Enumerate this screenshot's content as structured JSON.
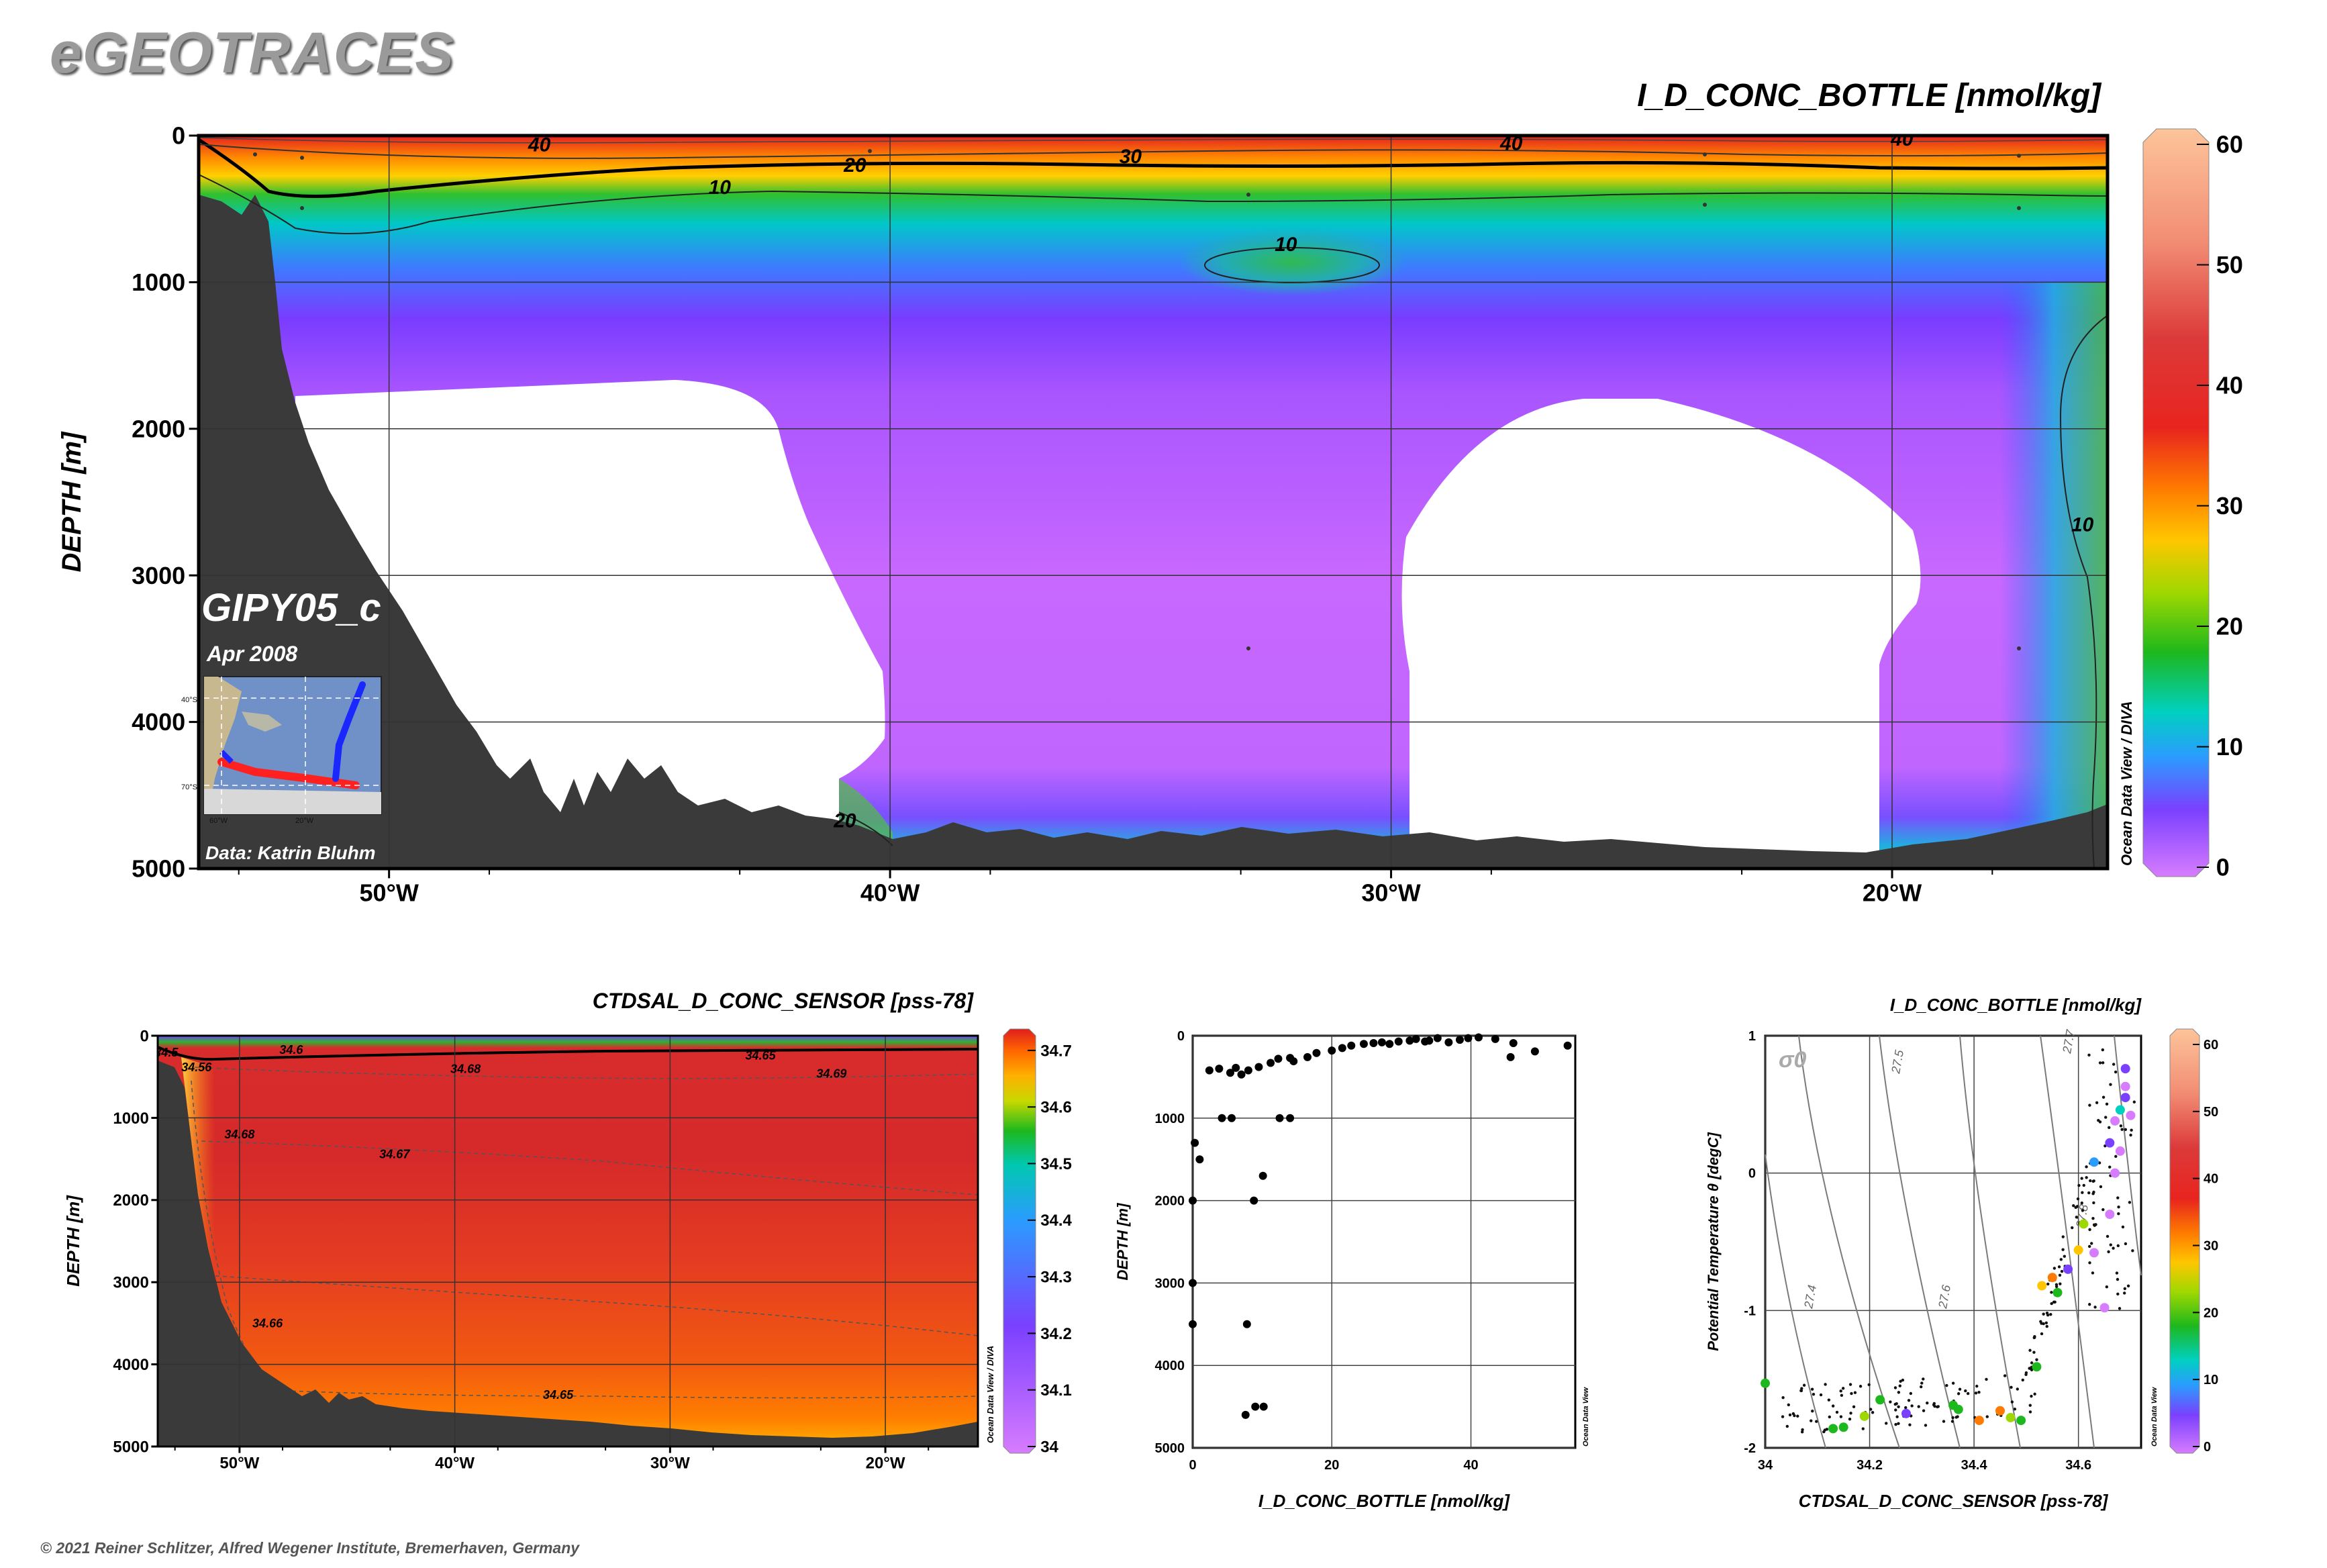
{
  "logo": "eGEOTRACES",
  "copyright": "© 2021 Reiner Schlitzer, Alfred Wegener Institute, Bremerhaven, Germany",
  "main": {
    "title": "I_D_CONC_BOTTLE [nmol/kg]",
    "ylabel": "DEPTH [m]",
    "section": "GIPY05_c",
    "date": "Apr 2008",
    "credit": "Data: Katrin Bluhm",
    "watermark": "Ocean Data View / DIVA",
    "inset_labels": [
      "40°S",
      "70°S",
      "60°W",
      "20°W"
    ]
  },
  "salinity": {
    "title": "CTDSAL_D_CONC_SENSOR [pss-78]",
    "ylabel": "DEPTH [m]",
    "watermark": "Ocean Data View / DIVA"
  },
  "profile": {
    "xlabel": "I_D_CONC_BOTTLE [nmol/kg]",
    "ylabel": "DEPTH [m]",
    "watermark": "Ocean Data View"
  },
  "ts": {
    "title": "I_D_CONC_BOTTLE [nmol/kg]",
    "xlabel": "CTDSAL_D_CONC_SENSOR [pss-78]",
    "ylabel": "Potential Temperature θ [degC]",
    "sigma": "σ0",
    "watermark": "Ocean Data View"
  },
  "chart_data": [
    {
      "type": "heatmap",
      "name": "iodide section",
      "x_ticks": [
        "50°W",
        "40°W",
        "30°W",
        "20°W"
      ],
      "x_tick_values": [
        -50,
        -40,
        -30,
        -20
      ],
      "xlim": [
        -53.8,
        -15.7
      ],
      "y_ticks": [
        "0",
        "1000",
        "2000",
        "3000",
        "4000",
        "5000"
      ],
      "ylim": [
        0,
        5000
      ],
      "y_reversed": true,
      "colorbar_ticks": [
        "0",
        "10",
        "20",
        "30",
        "40",
        "50",
        "60"
      ],
      "colorbar_range": [
        0,
        60
      ],
      "contour_labels": [
        {
          "text": "40",
          "lon": -47,
          "depth": 60
        },
        {
          "text": "30",
          "lon": -35.2,
          "depth": 140
        },
        {
          "text": "20",
          "lon": -40.7,
          "depth": 200
        },
        {
          "text": "10",
          "lon": -43.4,
          "depth": 350
        },
        {
          "text": "10",
          "lon": -32.1,
          "depth": 740
        },
        {
          "text": "40",
          "lon": -27.6,
          "depth": 50
        },
        {
          "text": "40",
          "lon": -19.8,
          "depth": 20
        },
        {
          "text": "10",
          "lon": -16.2,
          "depth": 2650
        },
        {
          "text": "20",
          "lon": -40.9,
          "depth": 4670
        }
      ]
    },
    {
      "type": "heatmap",
      "name": "salinity section",
      "x_ticks": [
        "50°W",
        "40°W",
        "30°W",
        "20°W"
      ],
      "x_tick_values": [
        -50,
        -40,
        -30,
        -20
      ],
      "xlim": [
        -53.8,
        -15.7
      ],
      "y_ticks": [
        "0",
        "1000",
        "2000",
        "3000",
        "4000",
        "5000"
      ],
      "ylim": [
        0,
        5000
      ],
      "y_reversed": true,
      "colorbar_ticks": [
        "34",
        "34.1",
        "34.2",
        "34.3",
        "34.4",
        "34.5",
        "34.6",
        "34.7"
      ],
      "colorbar_range": [
        34.0,
        34.72
      ],
      "contour_labels": [
        {
          "text": "34.5",
          "lon": -53.4,
          "depth": 200
        },
        {
          "text": "34.56",
          "lon": -52.0,
          "depth": 380
        },
        {
          "text": "34.6",
          "lon": -47.6,
          "depth": 170
        },
        {
          "text": "34.68",
          "lon": -39.5,
          "depth": 400
        },
        {
          "text": "34.65",
          "lon": -25.8,
          "depth": 240
        },
        {
          "text": "34.69",
          "lon": -22.5,
          "depth": 460
        },
        {
          "text": "34.68",
          "lon": -50.0,
          "depth": 1200
        },
        {
          "text": "34.67",
          "lon": -42.8,
          "depth": 1440
        },
        {
          "text": "34.66",
          "lon": -48.7,
          "depth": 3500
        },
        {
          "text": "34.65",
          "lon": -35.2,
          "depth": 4370
        }
      ]
    },
    {
      "type": "scatter",
      "name": "iodide depth profile",
      "xlabel": "I_D_CONC_BOTTLE [nmol/kg]",
      "ylabel": "DEPTH [m]",
      "xlim": [
        0,
        55
      ],
      "ylim": [
        0,
        5000
      ],
      "y_reversed": true,
      "x_ticks": [
        0,
        20,
        40
      ],
      "y_ticks": [
        0,
        1000,
        2000,
        3000,
        4000,
        5000
      ],
      "points": [
        [
          0.3,
          1300
        ],
        [
          1,
          1500
        ],
        [
          0,
          2000
        ],
        [
          0,
          3000
        ],
        [
          0,
          3500
        ],
        [
          7.8,
          3500
        ],
        [
          7.6,
          4600
        ],
        [
          9,
          4500
        ],
        [
          10.2,
          4500
        ],
        [
          8.8,
          2000
        ],
        [
          10.1,
          1700
        ],
        [
          12.5,
          1000
        ],
        [
          14,
          1000
        ],
        [
          4.2,
          1000
        ],
        [
          5.6,
          1000
        ],
        [
          2.4,
          420
        ],
        [
          3.8,
          400
        ],
        [
          5.4,
          450
        ],
        [
          6.2,
          390
        ],
        [
          7,
          470
        ],
        [
          8,
          420
        ],
        [
          9.5,
          380
        ],
        [
          11.2,
          330
        ],
        [
          12.3,
          280
        ],
        [
          14,
          270
        ],
        [
          14.5,
          310
        ],
        [
          16.5,
          260
        ],
        [
          17.8,
          210
        ],
        [
          20,
          180
        ],
        [
          21.5,
          150
        ],
        [
          22.8,
          120
        ],
        [
          24.6,
          100
        ],
        [
          26,
          90
        ],
        [
          27.2,
          80
        ],
        [
          28.3,
          100
        ],
        [
          29.6,
          70
        ],
        [
          31.2,
          60
        ],
        [
          32.1,
          40
        ],
        [
          33.4,
          70
        ],
        [
          34,
          60
        ],
        [
          35.2,
          30
        ],
        [
          36.8,
          80
        ],
        [
          38.4,
          50
        ],
        [
          39.6,
          30
        ],
        [
          41.1,
          20
        ],
        [
          43.5,
          40
        ],
        [
          45.7,
          260
        ],
        [
          46.1,
          90
        ],
        [
          49.2,
          190
        ],
        [
          53.9,
          120
        ]
      ]
    },
    {
      "type": "scatter",
      "name": "TS diagram colored by iodide",
      "xlabel": "CTDSAL_D_CONC_SENSOR [pss-78]",
      "ylabel": "Potential Temperature θ [degC]",
      "xlim": [
        34.0,
        34.72
      ],
      "ylim": [
        -2.0,
        1.0
      ],
      "x_ticks": [
        34,
        34.2,
        34.4,
        34.6
      ],
      "y_ticks": [
        1,
        0,
        -1,
        -2
      ],
      "colorbar_ticks": [
        "0",
        "10",
        "20",
        "30",
        "40",
        "50",
        "60"
      ],
      "colorbar_range": [
        0,
        60
      ],
      "isopycnals": [
        "27.4",
        "27.5",
        "27.6",
        "27.7",
        "27.8"
      ],
      "points": [
        [
          34.0,
          -1.53,
          22
        ],
        [
          34.13,
          -1.86,
          20
        ],
        [
          34.15,
          -1.85,
          18
        ],
        [
          34.19,
          -1.77,
          25
        ],
        [
          34.22,
          -1.65,
          21
        ],
        [
          34.27,
          -1.75,
          6
        ],
        [
          34.36,
          -1.69,
          21
        ],
        [
          34.37,
          -1.72,
          20
        ],
        [
          34.41,
          -1.8,
          33
        ],
        [
          34.45,
          -1.73,
          36
        ],
        [
          34.47,
          -1.78,
          23
        ],
        [
          34.49,
          -1.8,
          22
        ],
        [
          34.52,
          -1.41,
          22
        ],
        [
          34.53,
          -0.82,
          27
        ],
        [
          34.55,
          -0.76,
          34
        ],
        [
          34.56,
          -0.87,
          20
        ],
        [
          34.58,
          -0.7,
          6
        ],
        [
          34.6,
          -0.56,
          28
        ],
        [
          34.61,
          -0.37,
          24
        ],
        [
          34.63,
          0.08,
          12
        ],
        [
          34.63,
          -0.58,
          3
        ],
        [
          34.66,
          0.22,
          8
        ],
        [
          34.67,
          0.38,
          4
        ],
        [
          34.68,
          0.46,
          14
        ],
        [
          34.69,
          0.55,
          5
        ],
        [
          34.69,
          0.63,
          3
        ],
        [
          34.69,
          0.76,
          6
        ],
        [
          34.66,
          -0.3,
          2
        ],
        [
          34.65,
          -0.98,
          2
        ],
        [
          34.67,
          0.0,
          3
        ],
        [
          34.68,
          0.16,
          2
        ],
        [
          34.7,
          0.42,
          2
        ]
      ]
    }
  ]
}
